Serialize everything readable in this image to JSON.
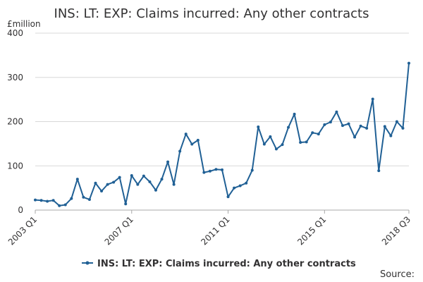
{
  "chart_data": {
    "type": "line",
    "title": "INS: LT: EXP: Claims incurred: Any other contracts",
    "unit_label": "£million",
    "source_label": "Source:",
    "ylim": [
      0,
      400
    ],
    "y_ticks": [
      0,
      100,
      200,
      300,
      400
    ],
    "x_tick_labels": [
      "2003 Q1",
      "2007 Q1",
      "2011 Q1",
      "2015 Q1",
      "2018 Q3"
    ],
    "grid": true,
    "legend_position": "bottom",
    "color": "#206095",
    "x": [
      "2003 Q1",
      "2003 Q2",
      "2003 Q3",
      "2003 Q4",
      "2004 Q1",
      "2004 Q2",
      "2004 Q3",
      "2004 Q4",
      "2005 Q1",
      "2005 Q2",
      "2005 Q3",
      "2005 Q4",
      "2006 Q1",
      "2006 Q2",
      "2006 Q3",
      "2006 Q4",
      "2007 Q1",
      "2007 Q2",
      "2007 Q3",
      "2007 Q4",
      "2008 Q1",
      "2008 Q2",
      "2008 Q3",
      "2008 Q4",
      "2009 Q1",
      "2009 Q2",
      "2009 Q3",
      "2009 Q4",
      "2010 Q1",
      "2010 Q2",
      "2010 Q3",
      "2010 Q4",
      "2011 Q1",
      "2011 Q2",
      "2011 Q3",
      "2011 Q4",
      "2012 Q1",
      "2012 Q2",
      "2012 Q3",
      "2012 Q4",
      "2013 Q1",
      "2013 Q2",
      "2013 Q3",
      "2013 Q4",
      "2014 Q1",
      "2014 Q2",
      "2014 Q3",
      "2014 Q4",
      "2015 Q1",
      "2015 Q2",
      "2015 Q3",
      "2015 Q4",
      "2016 Q1",
      "2016 Q2",
      "2016 Q3",
      "2016 Q4",
      "2017 Q1",
      "2017 Q2",
      "2017 Q3",
      "2017 Q4",
      "2018 Q1",
      "2018 Q2",
      "2018 Q3"
    ],
    "series": [
      {
        "name": "INS: LT: EXP: Claims incurred: Any other contracts",
        "values": [
          23,
          22,
          20,
          22,
          10,
          12,
          26,
          70,
          29,
          24,
          61,
          43,
          58,
          63,
          74,
          14,
          78,
          58,
          77,
          64,
          45,
          70,
          109,
          58,
          133,
          172,
          149,
          158,
          85,
          88,
          92,
          91,
          30,
          50,
          55,
          61,
          90,
          188,
          149,
          166,
          138,
          148,
          187,
          217,
          153,
          154,
          175,
          172,
          193,
          199,
          222,
          191,
          195,
          165,
          190,
          185,
          251,
          89,
          189,
          168,
          200,
          185,
          332
        ]
      }
    ]
  }
}
